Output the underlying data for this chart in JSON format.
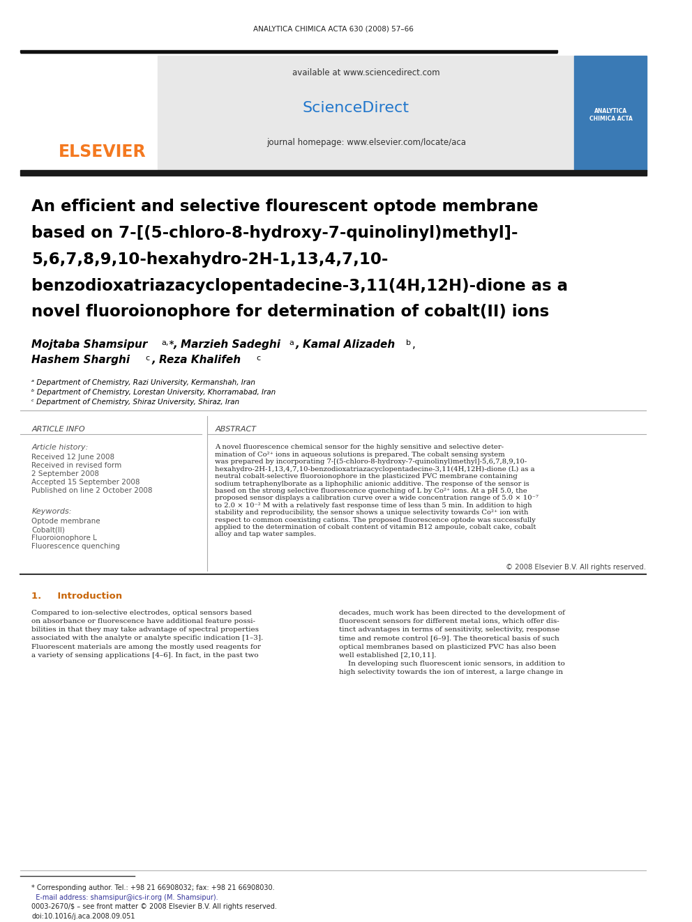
{
  "journal_header": "ANALYTICA CHIMICA ACTA 630 (2008) 57–66",
  "available_text": "available at www.sciencedirect.com",
  "sciencedirect_text": "ScienceDirect",
  "journal_homepage": "journal homepage: www.elsevier.com/locate/aca",
  "elsevier_text": "ELSEVIER",
  "title_line1": "An efficient and selective flourescent optode membrane",
  "title_line2": "based on 7-[(5-chloro-8-hydroxy-7-quinolinyl)methyl]-",
  "title_line3": "5,6,7,8,9,10-hexahydro-2H-1,13,4,7,10-",
  "title_line4": "benzodioxatriazacyclopentadecine-3,11(4H,12H)-dione as a",
  "title_line5": "novel fluoroionophore for determination of cobalt(II) ions",
  "authors_line1": "Mojtaba Shamsipur",
  "authors_line1_sup1": "a,∗",
  "authors_line1_part2": ", Marzieh Sadeghi",
  "authors_line1_sup2": "a",
  "authors_line1_part3": ", Kamal Alizadeh",
  "authors_line1_sup3": "b",
  "authors_line1_part4": ",",
  "authors_line2_part1": "Hashem Sharghi",
  "authors_line2_sup1": "c",
  "authors_line2_part2": ", Reza Khalifeh",
  "authors_line2_sup2": "c",
  "affil_a": "ᵃ Department of Chemistry, Razi University, Kermanshah, Iran",
  "affil_b": "ᵇ Department of Chemistry, Lorestan University, Khorramabad, Iran",
  "affil_c": "ᶜ Department of Chemistry, Shiraz University, Shiraz, Iran",
  "article_info_title": "ARTICLE INFO",
  "article_history_title": "Article history:",
  "received_1": "Received 12 June 2008",
  "received_revised": "Received in revised form",
  "date_revised": "2 September 2008",
  "accepted": "Accepted 15 September 2008",
  "published": "Published on line 2 October 2008",
  "keywords_title": "Keywords:",
  "kw1": "Optode membrane",
  "kw2": "Cobalt(II)",
  "kw3": "Fluoroionophore L",
  "kw4": "Fluorescence quenching",
  "abstract_title": "ABSTRACT",
  "abstract_text": "A novel fluorescence chemical sensor for the highly sensitive and selective deter-\nmination of Co²⁺ ions in aqueous solutions is prepared. The cobalt sensing system\nwas prepared by incorporating 7-[(5-chloro-8-hydroxy-7-quinolinyl)methyl]-5,6,7,8,9,10-\nhexahydro-2H-1,13,4,7,10-benzodioxatriazacyclopentadecine-3,11(4H,12H)-dione (L) as a\nneutral cobalt-selective fluoroionophore in the plasticized PVC membrane containing\nsodium tetraphenylborate as a liphophilic anionic additive. The response of the sensor is\nbased on the strong selective fluorescence quenching of L by Co²⁺ ions. At a pH 5.0, the\nproposed sensor displays a calibration curve over a wide concentration range of 5.0 × 10⁻⁷\nto 2.0 × 10⁻² M with a relatively fast response time of less than 5 min. In addition to high\nstability and reproducibility, the sensor shows a unique selectivity towards Co²⁺ ion with\nrespect to common coexisting cations. The proposed fluorescence optode was successfully\napplied to the determination of cobalt content of vitamin B12 ampoule, cobalt cake, cobalt\nalloy and tap water samples.",
  "copyright_text": "© 2008 Elsevier B.V. All rights reserved.",
  "section1_title": "1.     Introduction",
  "intro_col1": "Compared to ion-selective electrodes, optical sensors based\non absorbance or fluorescence have additional feature possi-\nbilities in that they may take advantage of spectral properties\nassociated with the analyte or analyte specific indication [1–3].\nFluorescent materials are among the mostly used reagents for\na variety of sensing applications [4–6]. In fact, in the past two",
  "intro_col2": "decades, much work has been directed to the development of\nfluorescent sensors for different metal ions, which offer dis-\ntinct advantages in terms of sensitivity, selectivity, response\ntime and remote control [6–9]. The theoretical basis of such\noptical membranes based on plasticized PVC has also been\nwell established [2,10,11].\n    In developing such fluorescent ionic sensors, in addition to\nhigh selectivity towards the ion of interest, a large change in",
  "footnote_star": "* Corresponding author. Tel.: +98 21 66908032; fax: +98 21 66908030.",
  "footnote_email": "  E-mail address: shamsipur@ics-ir.org (M. Shamsipur).",
  "footnote_issn": "0003-2670/$ – see front matter © 2008 Elsevier B.V. All rights reserved.",
  "footnote_doi": "doi:10.1016/j.aca.2008.09.051",
  "bg_color": "#ffffff",
  "header_bg": "#f0f0f0",
  "dark_bar_color": "#2a2a2a",
  "elsevier_orange": "#f47920",
  "sciencedirect_green": "#4caf50",
  "title_color": "#000000",
  "section_title_color": "#c8660a",
  "abstract_col_bg": "#f8f8f8"
}
